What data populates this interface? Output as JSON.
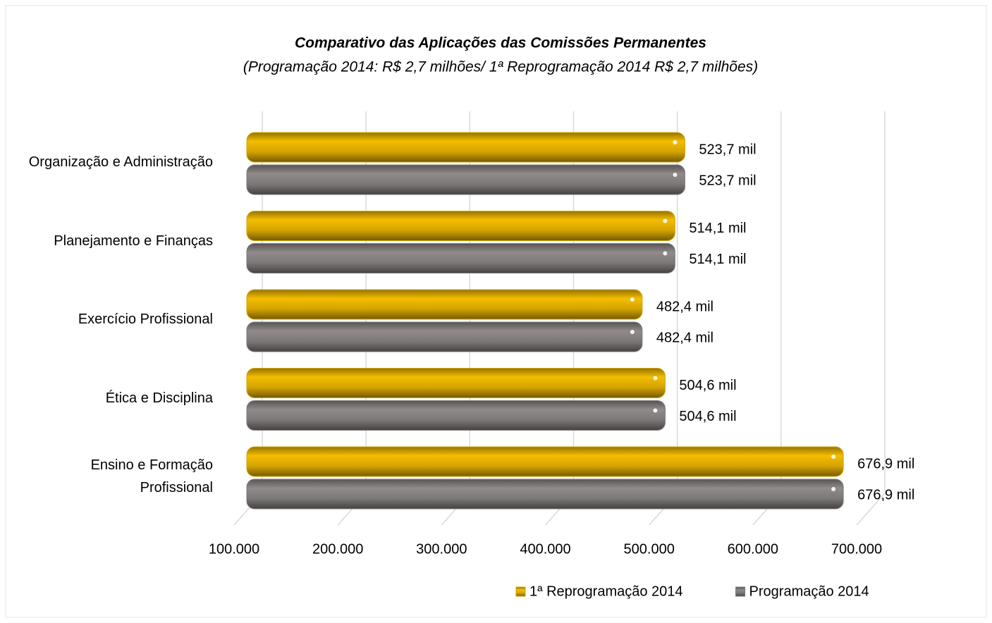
{
  "chart_data": {
    "type": "bar",
    "orientation": "horizontal",
    "title": "Comparativo das Aplicações das Comissões Permanentes",
    "subtitle": "(Programação 2014: R$ 2,7 milhões/ 1ª Reprogramação 2014 R$ 2,7 milhões)",
    "categories": [
      "Organização e Administração",
      "Planejamento e Finanças",
      "Exercício Profissional",
      "Ética e Disciplina",
      "Ensino e Formação Profissional"
    ],
    "series": [
      {
        "name": "1ª Reprogramação 2014",
        "color": "#d4a400",
        "values": [
          523700,
          514100,
          482400,
          504600,
          676900
        ],
        "value_labels": [
          "523,7 mil",
          "514,1 mil",
          "482,4 mil",
          "504,6 mil",
          "676,9 mil"
        ]
      },
      {
        "name": "Programação 2014",
        "color": "#7d7878",
        "values": [
          523700,
          514100,
          482400,
          504600,
          676900
        ],
        "value_labels": [
          "523,7 mil",
          "514,1 mil",
          "482,4 mil",
          "504,6 mil",
          "676,9 mil"
        ]
      }
    ],
    "xlim": [
      100000,
      700000
    ],
    "xticks": [
      {
        "value": 100000,
        "label": "100.000"
      },
      {
        "value": 200000,
        "label": "200.000"
      },
      {
        "value": 300000,
        "label": "300.000"
      },
      {
        "value": 400000,
        "label": "400.000"
      },
      {
        "value": 500000,
        "label": "500.000"
      },
      {
        "value": 600000,
        "label": "600.000"
      },
      {
        "value": 700000,
        "label": "700.000"
      }
    ],
    "grid": true,
    "legend": "bottom"
  }
}
